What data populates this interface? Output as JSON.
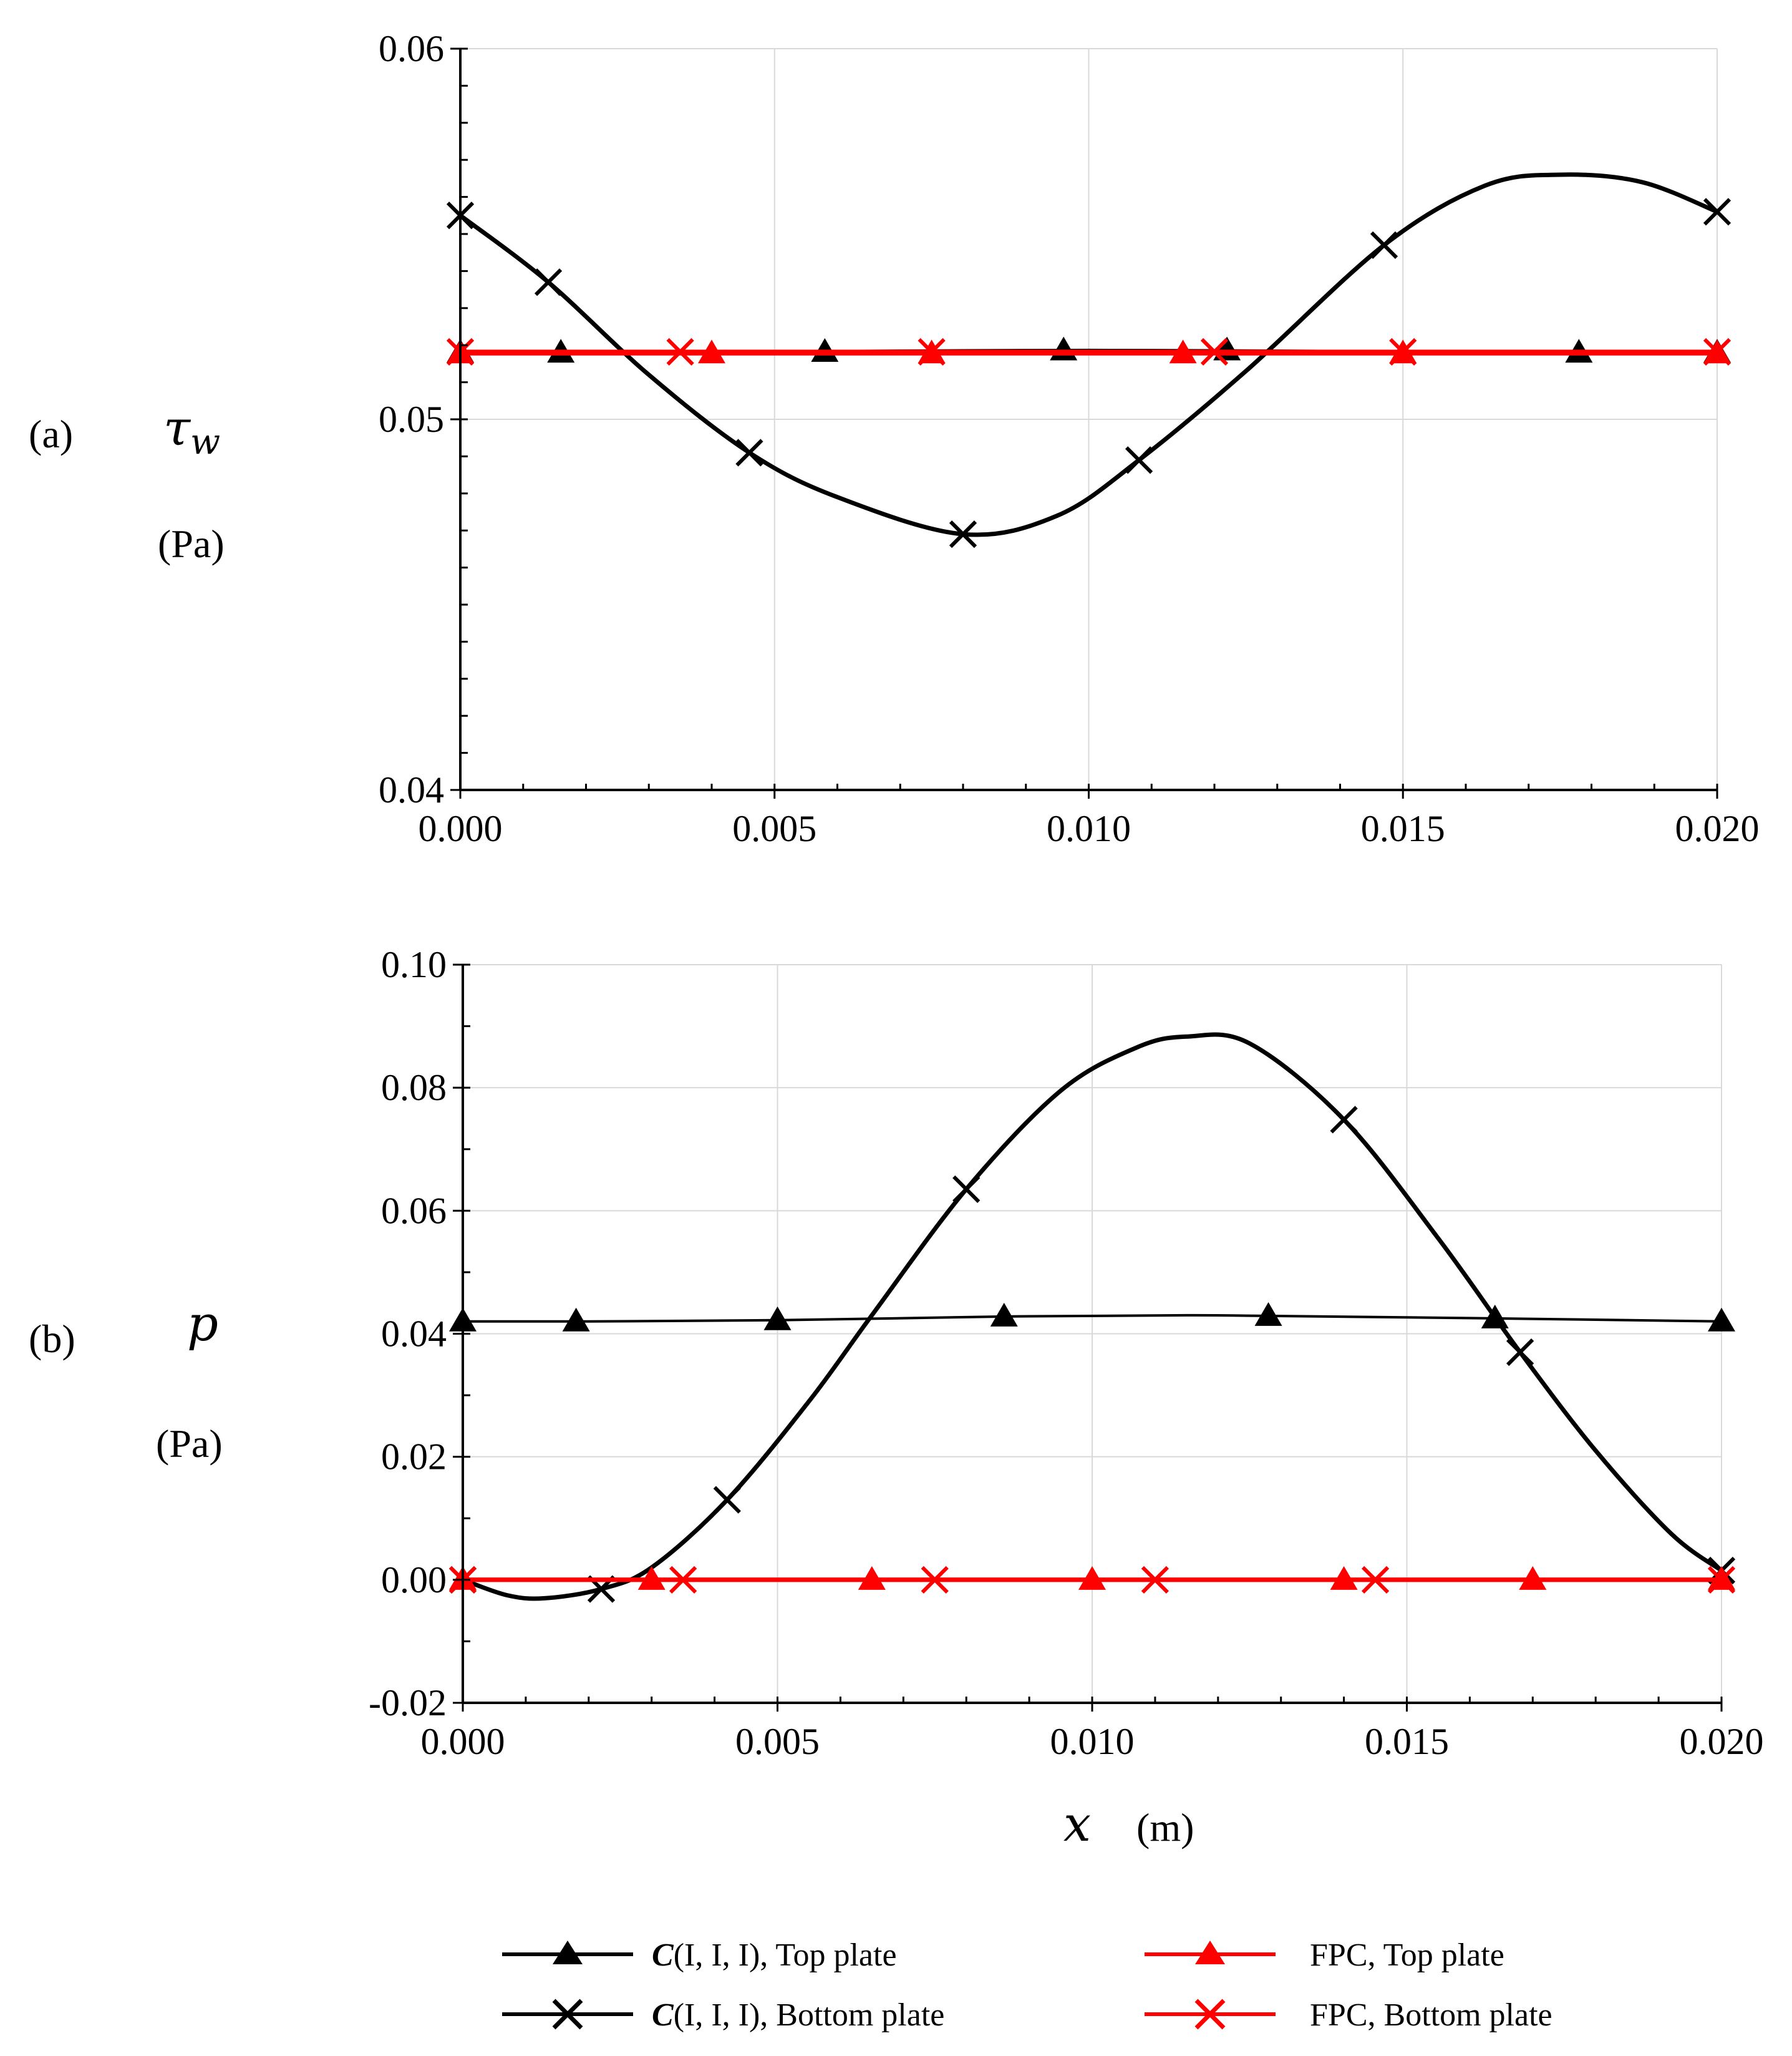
{
  "colors": {
    "c_series": "#000000",
    "fpc_series": "#ff0000",
    "grid": "#d9d9d9"
  },
  "chart_data": [
    {
      "id": "a",
      "type": "line",
      "panel_label": "(a)",
      "ylabel_symbol": "τw",
      "ylabel_unit": "(Pa)",
      "xlim": [
        0,
        0.02
      ],
      "ylim": [
        0.04,
        0.06
      ],
      "xticks": [
        "0.000",
        "0.005",
        "0.010",
        "0.015",
        "0.020"
      ],
      "yticks": [
        "0.04",
        "0.05",
        "0.06"
      ],
      "ytick_values": [
        0.04,
        0.05,
        0.06
      ],
      "grid": true,
      "series": [
        {
          "name": "C(I, I, I), Top plate",
          "color": "#000000",
          "marker": "triangle",
          "width": "thin",
          "line_x": [
            0,
            0.002,
            0.004,
            0.006,
            0.008,
            0.01,
            0.012,
            0.014,
            0.016,
            0.018,
            0.02
          ],
          "line_y": [
            0.0518,
            0.0518,
            0.05182,
            0.05184,
            0.05186,
            0.05187,
            0.05186,
            0.05184,
            0.05182,
            0.0518,
            0.0518
          ],
          "marker_x": [
            0,
            0.0016,
            0.0058,
            0.0096,
            0.0122,
            0.0178,
            0.02
          ],
          "marker_y": [
            0.0518,
            0.0518,
            0.05182,
            0.05186,
            0.05186,
            0.0518,
            0.0518
          ]
        },
        {
          "name": "C(I, I, I), Bottom plate",
          "color": "#000000",
          "marker": "x",
          "width": "thick",
          "line_x": [
            0,
            0.0014,
            0.003,
            0.0046,
            0.006,
            0.008,
            0.0095,
            0.0108,
            0.0125,
            0.0147,
            0.0163,
            0.0175,
            0.0188,
            0.02
          ],
          "line_y": [
            0.0555,
            0.0537,
            0.0512,
            0.0491,
            0.0479,
            0.0469,
            0.0474,
            0.0489,
            0.0513,
            0.0547,
            0.0563,
            0.0566,
            0.0564,
            0.0556
          ],
          "marker_x": [
            0,
            0.0014,
            0.0046,
            0.008,
            0.0108,
            0.0147,
            0.02
          ],
          "marker_y": [
            0.0555,
            0.0537,
            0.0491,
            0.0469,
            0.0489,
            0.0547,
            0.0556
          ]
        },
        {
          "name": "FPC, Top plate",
          "color": "#ff0000",
          "marker": "triangle",
          "width": "thick",
          "line_x": [
            0,
            0.02
          ],
          "line_y": [
            0.05178,
            0.05178
          ],
          "marker_x": [
            0,
            0.004,
            0.0075,
            0.0115,
            0.015,
            0.02
          ],
          "marker_y": [
            0.05178,
            0.05178,
            0.05178,
            0.05178,
            0.05178,
            0.05178
          ]
        },
        {
          "name": "FPC, Bottom plate",
          "color": "#ff0000",
          "marker": "x",
          "width": "thick",
          "line_x": [
            0,
            0.02
          ],
          "line_y": [
            0.05182,
            0.05182
          ],
          "marker_x": [
            0,
            0.0035,
            0.0075,
            0.012,
            0.015,
            0.02
          ],
          "marker_y": [
            0.05182,
            0.05182,
            0.05182,
            0.05182,
            0.05182,
            0.05182
          ]
        }
      ]
    },
    {
      "id": "b",
      "type": "line",
      "panel_label": "(b)",
      "ylabel_symbol": "p",
      "ylabel_unit": "(Pa)",
      "xlabel_symbol": "x",
      "xlabel_unit": "(m)",
      "xlim": [
        0,
        0.02
      ],
      "ylim": [
        -0.02,
        0.1
      ],
      "xticks": [
        "0.000",
        "0.005",
        "0.010",
        "0.015",
        "0.020"
      ],
      "yticks": [
        "-0.02",
        "0.00",
        "0.02",
        "0.04",
        "0.06",
        "0.08",
        "0.10"
      ],
      "ytick_values": [
        -0.02,
        0.0,
        0.02,
        0.04,
        0.06,
        0.08,
        0.1
      ],
      "grid": true,
      "series": [
        {
          "name": "C(I, I, I), Top plate",
          "color": "#000000",
          "marker": "triangle",
          "width": "thin",
          "line_x": [
            0,
            0.002,
            0.005,
            0.0086,
            0.0115,
            0.0128,
            0.0164,
            0.02
          ],
          "line_y": [
            0.042,
            0.042,
            0.0422,
            0.0428,
            0.043,
            0.0429,
            0.0425,
            0.042
          ],
          "marker_x": [
            0,
            0.0018,
            0.005,
            0.0086,
            0.0128,
            0.0164,
            0.02
          ],
          "marker_y": [
            0.042,
            0.042,
            0.0422,
            0.0428,
            0.0429,
            0.0425,
            0.042
          ]
        },
        {
          "name": "C(I, I, I), Bottom plate",
          "color": "#000000",
          "marker": "x",
          "width": "thick",
          "line_x": [
            0,
            0.0007,
            0.0013,
            0.0022,
            0.003,
            0.0042,
            0.0055,
            0.0065,
            0.008,
            0.0095,
            0.0107,
            0.0115,
            0.0125,
            0.014,
            0.0155,
            0.0168,
            0.018,
            0.0192,
            0.02
          ],
          "line_y": [
            0.0,
            -0.0025,
            -0.003,
            -0.0015,
            0.002,
            0.013,
            0.029,
            0.043,
            0.0635,
            0.0795,
            0.0865,
            0.0883,
            0.0872,
            0.0748,
            0.0555,
            0.037,
            0.021,
            0.0075,
            0.0015
          ],
          "marker_x": [
            0,
            0.0022,
            0.0042,
            0.008,
            0.014,
            0.0168,
            0.02
          ],
          "marker_y": [
            0.0,
            -0.0015,
            0.013,
            0.0635,
            0.0748,
            0.037,
            0.0015
          ]
        },
        {
          "name": "FPC, Top plate",
          "color": "#ff0000",
          "marker": "triangle",
          "width": "thick",
          "line_x": [
            0,
            0.02
          ],
          "line_y": [
            0.0,
            0.0
          ],
          "marker_x": [
            0,
            0.003,
            0.0065,
            0.01,
            0.014,
            0.017,
            0.02
          ],
          "marker_y": [
            0,
            0,
            0,
            0,
            0,
            0,
            0
          ]
        },
        {
          "name": "FPC, Bottom plate",
          "color": "#ff0000",
          "marker": "x",
          "width": "thick",
          "line_x": [
            0,
            0.02
          ],
          "line_y": [
            0.0,
            0.0
          ],
          "marker_x": [
            0,
            0.0035,
            0.0075,
            0.011,
            0.0145,
            0.02
          ],
          "marker_y": [
            0,
            0,
            0,
            0,
            0,
            0
          ]
        }
      ]
    }
  ],
  "legend": [
    {
      "prefix": "C",
      "text": "(I, I, I),  Top plate",
      "color": "#000000",
      "marker": "triangle"
    },
    {
      "prefix": "C",
      "text": "(I, I, I),  Bottom plate",
      "color": "#000000",
      "marker": "x"
    },
    {
      "prefix": "",
      "text": "FPC,  Top plate",
      "color": "#ff0000",
      "marker": "triangle"
    },
    {
      "prefix": "",
      "text": "FPC,  Bottom plate",
      "color": "#ff0000",
      "marker": "x"
    }
  ]
}
